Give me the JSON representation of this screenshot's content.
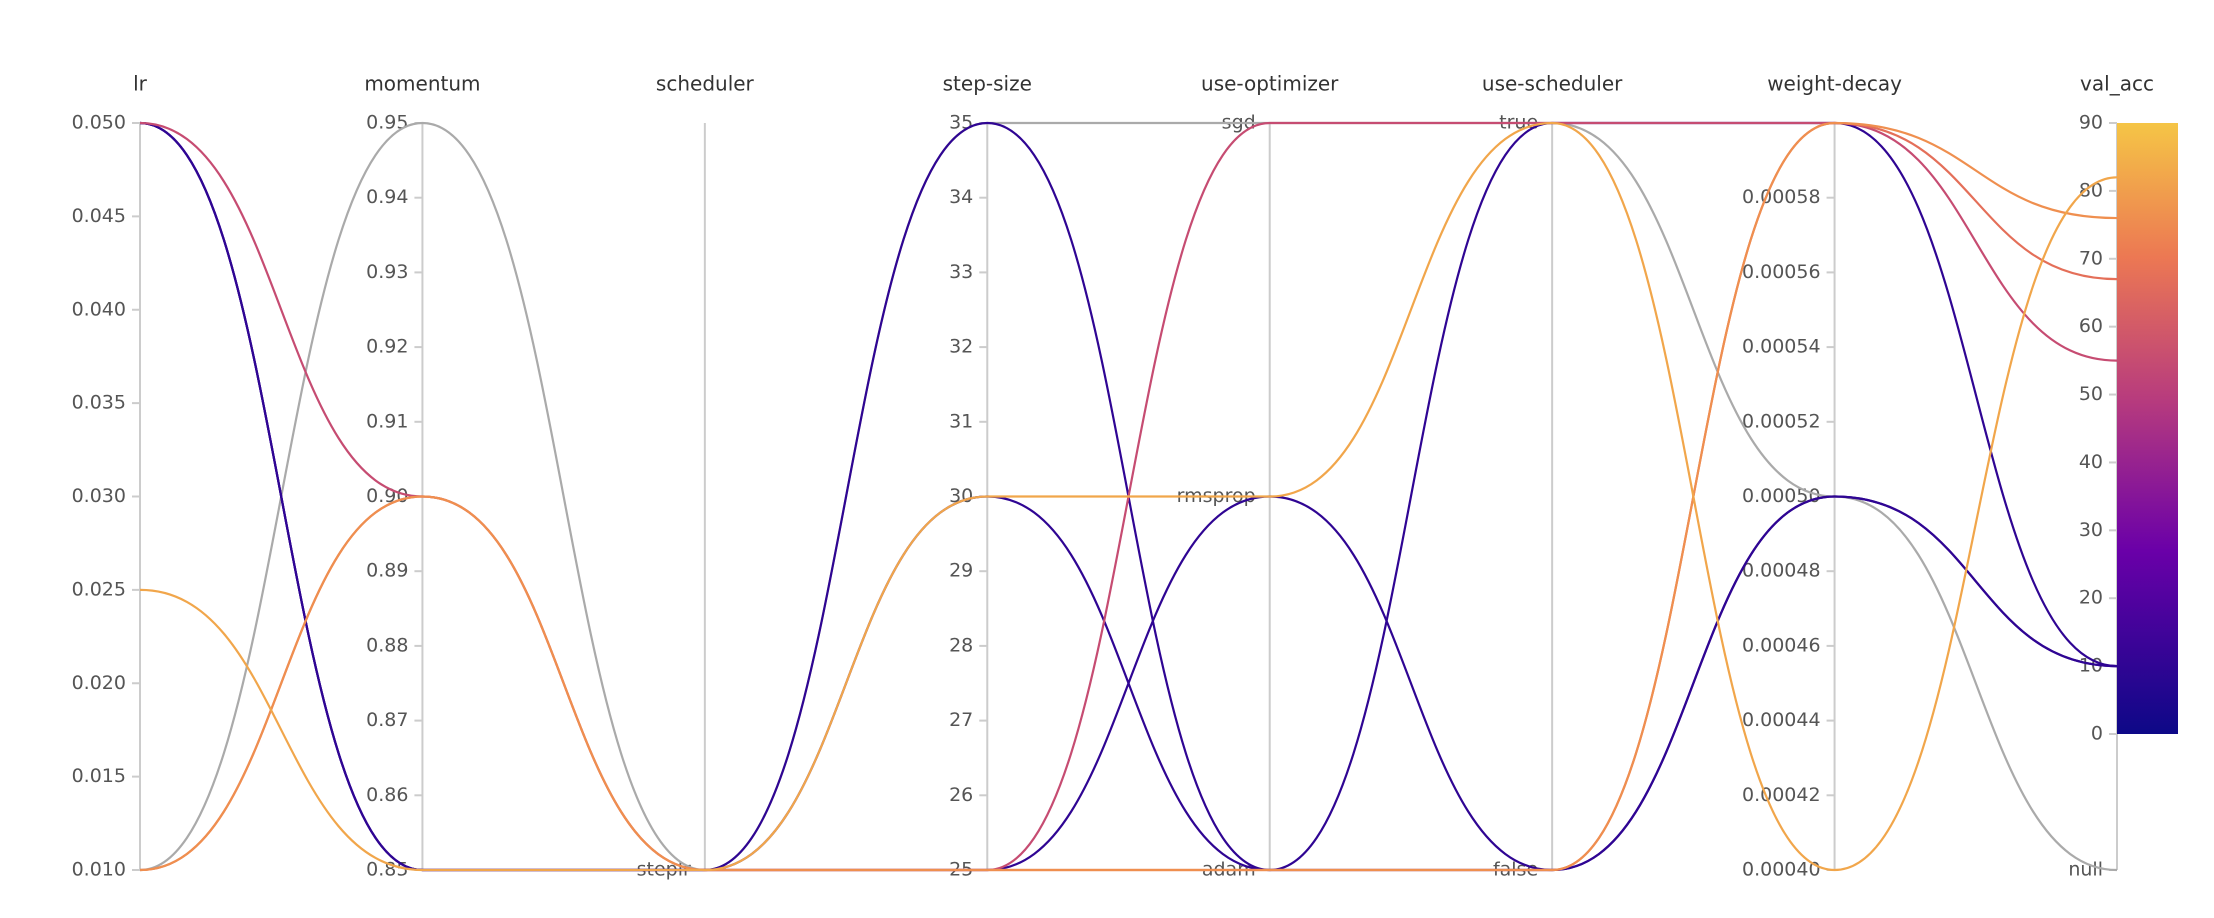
{
  "chart_data": {
    "type": "parallel",
    "dimensions": [
      {
        "name": "lr",
        "lim": [
          0.01,
          0.05
        ],
        "ticks": [
          {
            "value": 0.01,
            "label": "0.010"
          },
          0.015,
          {
            "value": 0.02,
            "label": "0.020"
          },
          0.025,
          {
            "value": 0.03,
            "label": "0.030"
          },
          0.035,
          {
            "value": 0.04,
            "label": "0.040"
          },
          0.045,
          {
            "value": 0.05,
            "label": "0.050"
          }
        ]
      },
      {
        "name": "momentum",
        "lim": [
          0.85,
          0.95
        ],
        "ticks": [
          0.85,
          0.86,
          0.87,
          0.88,
          0.89,
          {
            "value": 0.9,
            "label": "0.90"
          },
          0.91,
          0.92,
          0.93,
          0.94,
          0.95
        ]
      },
      {
        "name": "scheduler",
        "categories": [
          "steplr"
        ]
      },
      {
        "name": "step-size",
        "lim": [
          25,
          35
        ],
        "ticks": [
          25,
          26,
          27,
          28,
          29,
          30,
          31,
          32,
          33,
          34,
          35
        ]
      },
      {
        "name": "use-optimizer",
        "categories": [
          "adam",
          "rmsprop",
          "sgd"
        ]
      },
      {
        "name": "use-scheduler",
        "categories": [
          "false",
          "true"
        ]
      },
      {
        "name": "weight-decay",
        "lim": [
          0.0004,
          0.0006
        ],
        "ticks": [
          {
            "value": 0.0004,
            "label": "0.00040"
          },
          {
            "value": 0.00042,
            "label": "0.00042"
          },
          {
            "value": 0.00044,
            "label": "0.00044"
          },
          {
            "value": 0.00046,
            "label": "0.00046"
          },
          {
            "value": 0.00048,
            "label": "0.00048"
          },
          {
            "value": 0.0005,
            "label": "0.00050"
          },
          {
            "value": 0.00052,
            "label": "0.00052"
          },
          {
            "value": 0.00054,
            "label": "0.00054"
          },
          {
            "value": 0.00056,
            "label": "0.00056"
          },
          {
            "value": 0.00058,
            "label": "0.00058"
          }
        ]
      },
      {
        "name": "val_acc",
        "color_axis": true,
        "lim": [
          0,
          90
        ],
        "ticks": [
          0,
          10,
          20,
          30,
          40,
          50,
          60,
          70,
          80,
          90
        ],
        "null_label": "null"
      }
    ],
    "colorscale": [
      [
        0,
        "#0d0887"
      ],
      [
        0.3,
        "#6a00a8"
      ],
      [
        0.55,
        "#b83c7d"
      ],
      [
        0.78,
        "#ec7853"
      ],
      [
        1,
        "#f5c546"
      ]
    ],
    "null_color": "#aaaaaa",
    "runs": [
      {
        "values": [
          0.01,
          0.95,
          "steplr",
          35,
          "sgd",
          "true",
          0.0005,
          null
        ]
      },
      {
        "values": [
          0.05,
          0.85,
          "steplr",
          35,
          "adam",
          "true",
          0.0006,
          10
        ]
      },
      {
        "values": [
          0.05,
          0.85,
          "steplr",
          30,
          "adam",
          "false",
          0.0005,
          10
        ]
      },
      {
        "values": [
          0.05,
          0.85,
          "steplr",
          25,
          "rmsprop",
          "false",
          0.0005,
          10
        ]
      },
      {
        "values": [
          0.05,
          0.9,
          "steplr",
          25,
          "sgd",
          "true",
          0.0006,
          55
        ]
      },
      {
        "values": [
          0.01,
          0.9,
          "steplr",
          25,
          "adam",
          "false",
          0.0006,
          67
        ]
      },
      {
        "values": [
          0.01,
          0.9,
          "steplr",
          25,
          "adam",
          "false",
          0.0006,
          76
        ]
      },
      {
        "values": [
          0.025,
          0.85,
          "steplr",
          30,
          "rmsprop",
          "true",
          0.0004,
          82
        ]
      }
    ]
  }
}
